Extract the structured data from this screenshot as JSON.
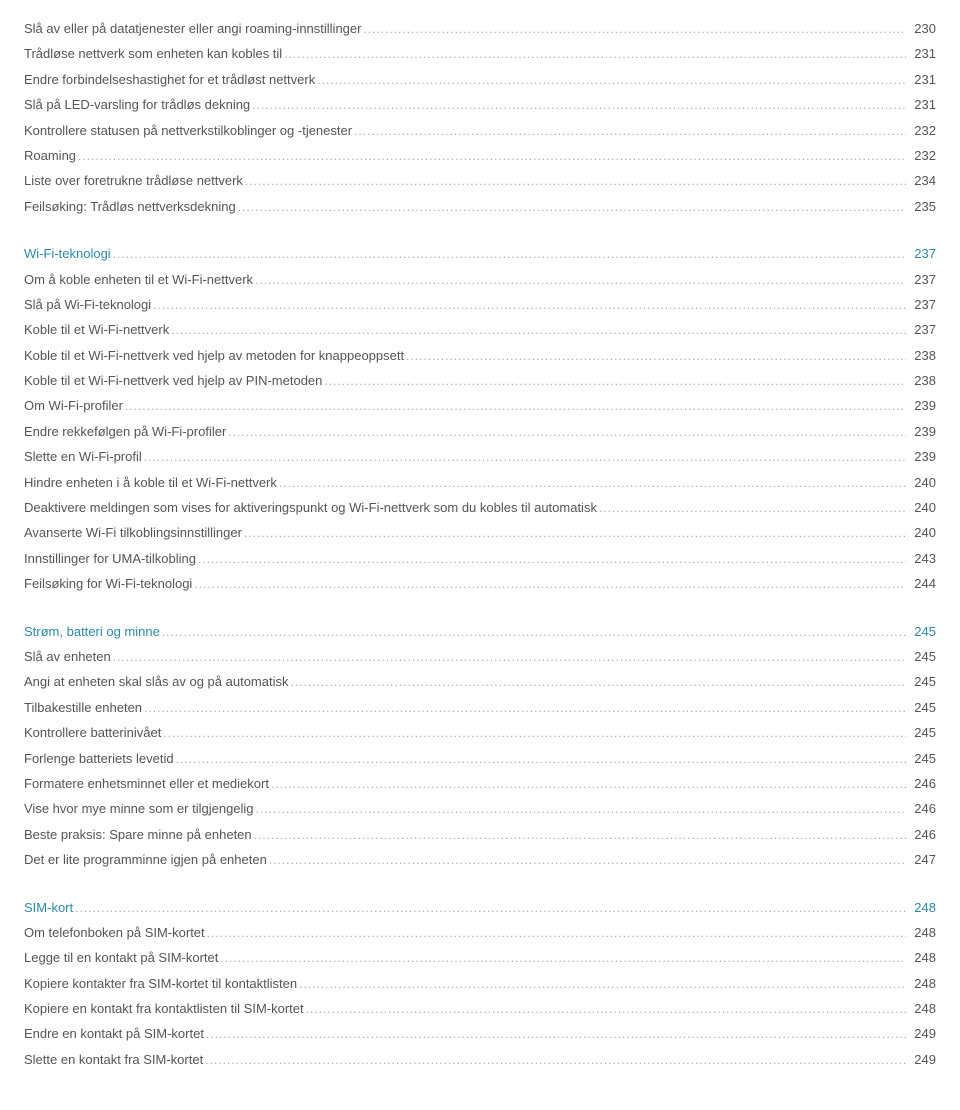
{
  "dots": "..........................................................................................................................................................................................................................................................................................................................................................................................................................",
  "sections": [
    {
      "heading": null,
      "items": [
        {
          "label": "Slå av eller på datatjenester eller angi roaming-innstillinger",
          "page": "230"
        },
        {
          "label": "Trådløse nettverk som enheten kan kobles til",
          "page": "231"
        },
        {
          "label": "Endre forbindelseshastighet for et trådløst nettverk",
          "page": "231"
        },
        {
          "label": "Slå på LED-varsling for trådløs dekning",
          "page": "231"
        },
        {
          "label": "Kontrollere statusen på nettverkstilkoblinger og -tjenester",
          "page": "232"
        },
        {
          "label": "Roaming",
          "page": "232"
        },
        {
          "label": "Liste over foretrukne trådløse nettverk",
          "page": "234"
        },
        {
          "label": "Feilsøking: Trådløs nettverksdekning",
          "page": "235"
        }
      ]
    },
    {
      "heading": {
        "label": "Wi-Fi-teknologi",
        "page": "237"
      },
      "items": [
        {
          "label": "Om å koble enheten til et Wi-Fi-nettverk",
          "page": "237"
        },
        {
          "label": "Slå på Wi-Fi-teknologi",
          "page": "237"
        },
        {
          "label": "Koble til et Wi-Fi-nettverk",
          "page": "237"
        },
        {
          "label": "Koble til et Wi-Fi-nettverk ved hjelp av metoden for knappeoppsett",
          "page": "238"
        },
        {
          "label": "Koble til et Wi-Fi-nettverk ved hjelp av PIN-metoden",
          "page": "238"
        },
        {
          "label": "Om Wi-Fi-profiler",
          "page": "239"
        },
        {
          "label": "Endre rekkefølgen på Wi-Fi-profiler",
          "page": "239"
        },
        {
          "label": "Slette en Wi-Fi-profil",
          "page": "239"
        },
        {
          "label": "Hindre enheten i å koble til et Wi-Fi-nettverk",
          "page": "240"
        },
        {
          "label": "Deaktivere meldingen som vises for aktiveringspunkt og Wi-Fi-nettverk som du kobles til automatisk",
          "page": "240"
        },
        {
          "label": "Avanserte Wi-Fi tilkoblingsinnstillinger",
          "page": "240"
        },
        {
          "label": "Innstillinger for UMA-tilkobling",
          "page": "243"
        },
        {
          "label": "Feilsøking for Wi-Fi-teknologi",
          "page": "244"
        }
      ]
    },
    {
      "heading": {
        "label": "Strøm, batteri og minne",
        "page": "245"
      },
      "items": [
        {
          "label": "Slå av enheten",
          "page": "245"
        },
        {
          "label": "Angi at enheten skal slås av og på automatisk",
          "page": "245"
        },
        {
          "label": "Tilbakestille enheten",
          "page": "245"
        },
        {
          "label": "Kontrollere batterinivået",
          "page": "245"
        },
        {
          "label": "Forlenge batteriets levetid",
          "page": "245"
        },
        {
          "label": "Formatere enhetsminnet eller et mediekort",
          "page": "246"
        },
        {
          "label": "Vise hvor mye minne som er tilgjengelig",
          "page": "246"
        },
        {
          "label": "Beste praksis: Spare minne på enheten",
          "page": "246"
        },
        {
          "label": "Det er lite programminne igjen på enheten",
          "page": "247"
        }
      ]
    },
    {
      "heading": {
        "label": "SIM-kort",
        "page": "248"
      },
      "items": [
        {
          "label": "Om telefonboken på SIM-kortet",
          "page": "248"
        },
        {
          "label": "Legge til en kontakt på SIM-kortet",
          "page": "248"
        },
        {
          "label": "Kopiere kontakter fra SIM-kortet til kontaktlisten",
          "page": "248"
        },
        {
          "label": "Kopiere en kontakt fra kontaktlisten til SIM-kortet",
          "page": "248"
        },
        {
          "label": "Endre en kontakt på SIM-kortet",
          "page": "249"
        },
        {
          "label": "Slette en kontakt fra SIM-kortet",
          "page": "249"
        }
      ]
    }
  ]
}
